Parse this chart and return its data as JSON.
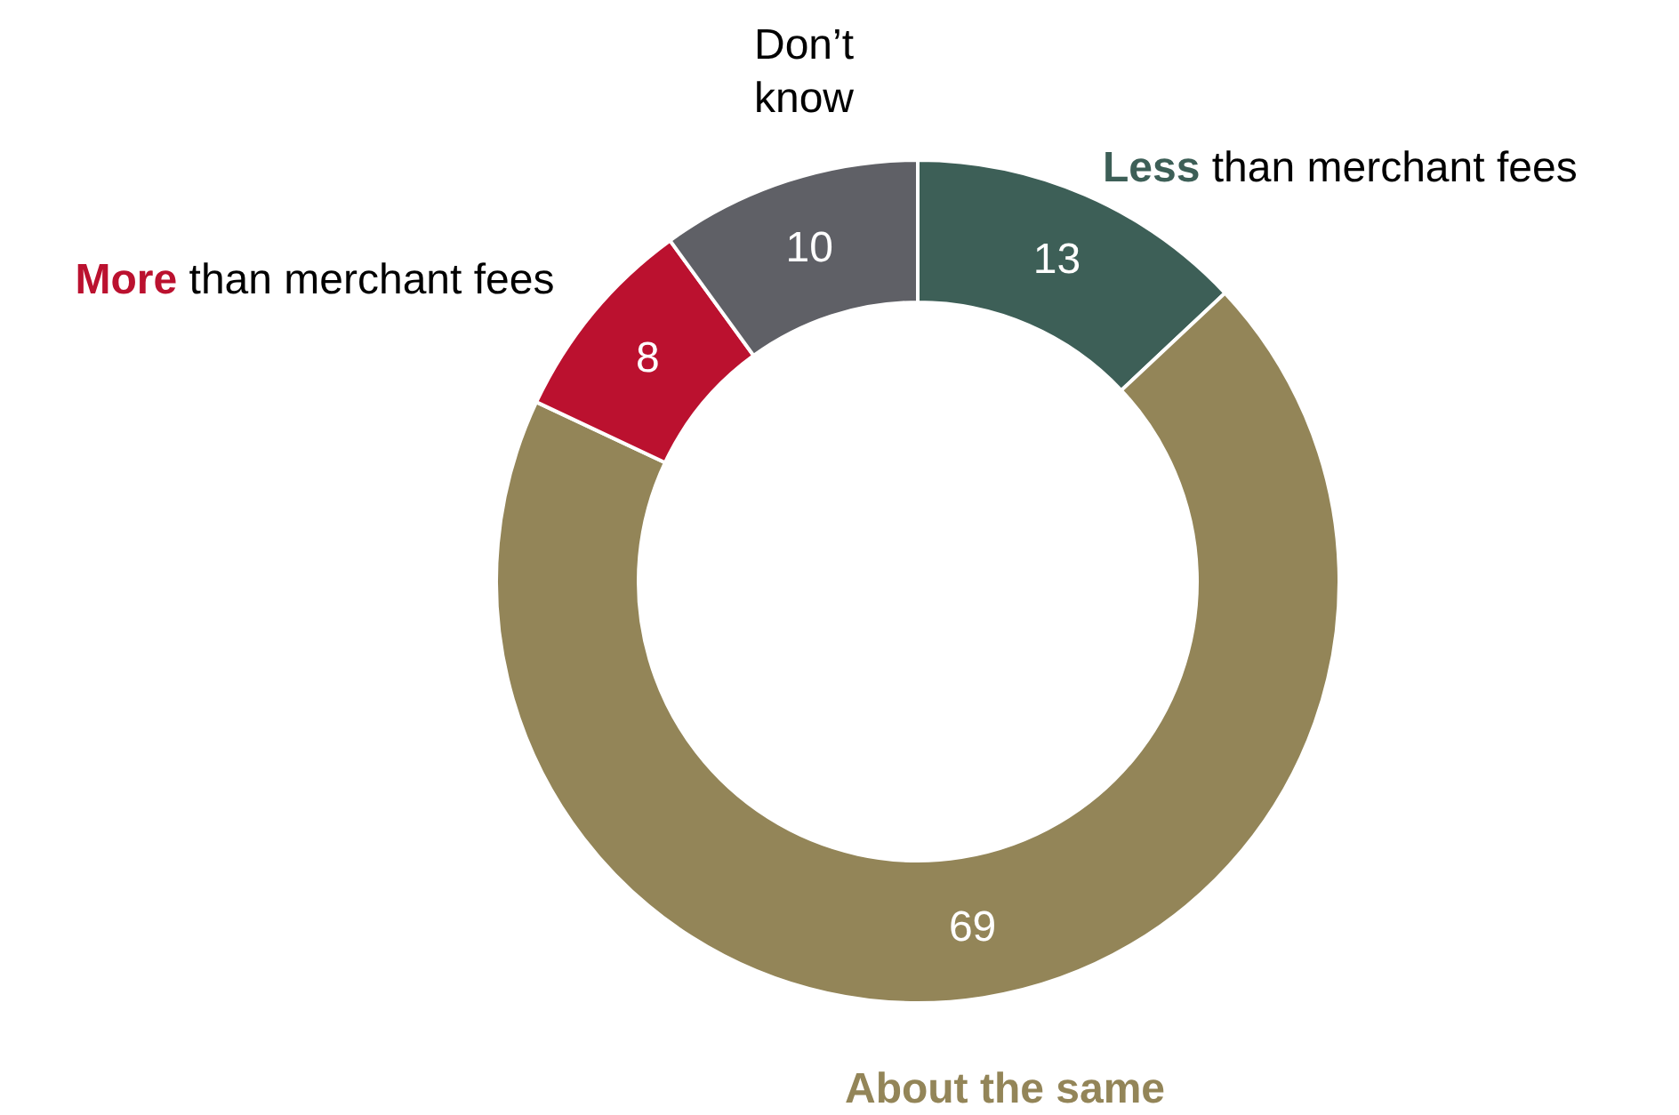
{
  "chart_data": {
    "type": "donut",
    "categories": [
      "Less than merchant fees",
      "About the same",
      "More than merchant fees",
      "Don’t know"
    ],
    "values": [
      13,
      69,
      8,
      10
    ],
    "colors": [
      "#3d5f57",
      "#938558",
      "#bb112f",
      "#5f6066"
    ],
    "data_labels": true,
    "legend": false
  }
}
